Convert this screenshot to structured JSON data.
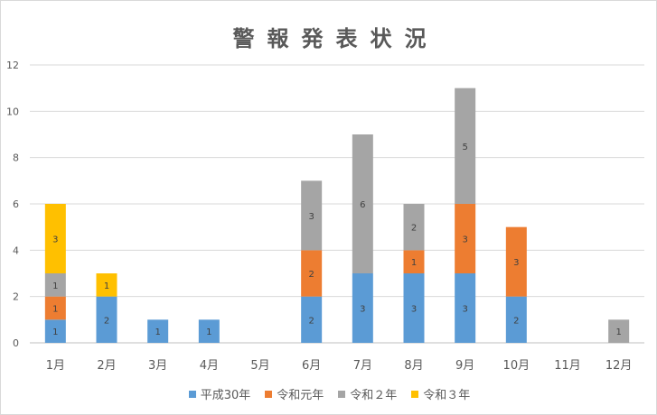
{
  "chart_data": {
    "type": "bar",
    "stacked": true,
    "title": "警報発表状況",
    "categories": [
      "1月",
      "2月",
      "3月",
      "4月",
      "5月",
      "6月",
      "7月",
      "8月",
      "9月",
      "10月",
      "11月",
      "12月"
    ],
    "series": [
      {
        "name": "平成30年",
        "color": "#5b9bd5",
        "values": [
          1,
          2,
          1,
          1,
          0,
          2,
          3,
          3,
          3,
          2,
          0,
          0
        ]
      },
      {
        "name": "令和元年",
        "color": "#ed7d31",
        "values": [
          1,
          0,
          0,
          0,
          0,
          2,
          0,
          1,
          3,
          3,
          0,
          0
        ]
      },
      {
        "name": "令和２年",
        "color": "#a5a5a5",
        "values": [
          1,
          0,
          0,
          0,
          0,
          3,
          6,
          2,
          5,
          0,
          0,
          1
        ]
      },
      {
        "name": "令和３年",
        "color": "#ffc000",
        "values": [
          3,
          1,
          0,
          0,
          0,
          0,
          0,
          0,
          0,
          0,
          0,
          0
        ]
      }
    ],
    "ylim": [
      0,
      12
    ],
    "yticks": [
      0,
      2,
      4,
      6,
      8,
      10,
      12
    ],
    "grid": true,
    "legend": "bottom"
  }
}
